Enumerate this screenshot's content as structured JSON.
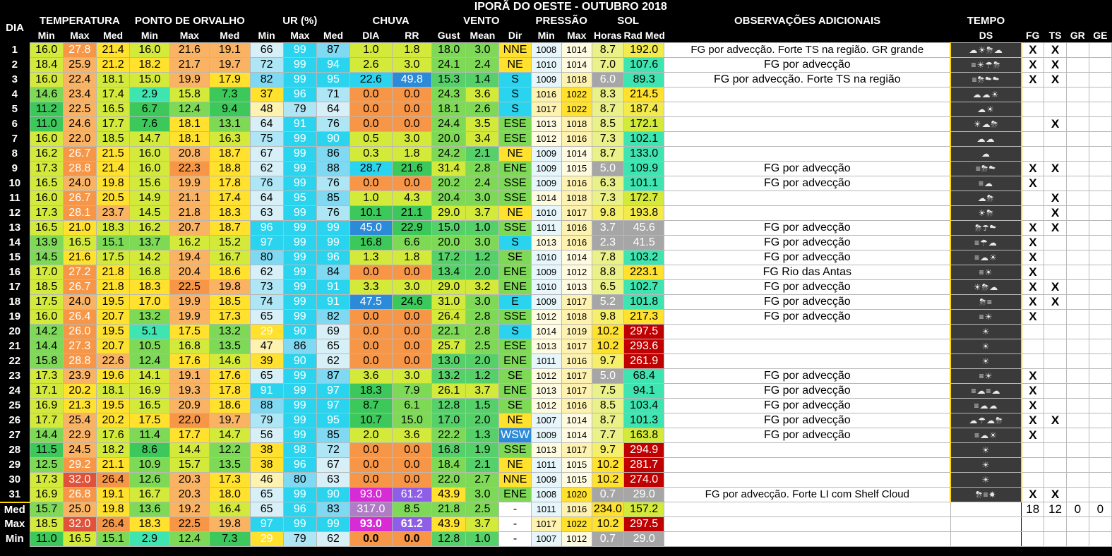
{
  "title": "IPORÃ DO OESTE - OUTUBRO 2018",
  "headers": {
    "dia": "DIA",
    "temperatura": "TEMPERATURA",
    "orvalho": "PONTO DE ORVALHO",
    "ur": "UR (%)",
    "chuva": "CHUVA",
    "vento": "VENTO",
    "pressao": "PRESSÃO",
    "sol": "SOL",
    "obs": "OBSERVAÇÕES ADICIONAIS",
    "tempo": "TEMPO",
    "sub": [
      "Min",
      "Max",
      "Med",
      "Min",
      "Max",
      "Med",
      "Min",
      "Max",
      "Med",
      "DIA",
      "RR",
      "Gust",
      "Mean",
      "Dir",
      "Min",
      "Max",
      "Horas",
      "Rad Med",
      "",
      "DS",
      "FG",
      "TS",
      "GR",
      "GE"
    ]
  },
  "rows": [
    [
      "1",
      "16.0",
      "27.8",
      "21.4",
      "16.0",
      "21.6",
      "19.1",
      "66",
      "99",
      "87",
      "1.0",
      "1.8",
      "18.0",
      "3.0",
      "NNE",
      "1008",
      "1014",
      "8.7",
      "192.0",
      "FG por advecção. Forte TS na região. GR grande",
      "☁☀⛈☁",
      "X",
      "X",
      "",
      ""
    ],
    [
      "2",
      "18.4",
      "25.9",
      "21.2",
      "18.2",
      "21.7",
      "19.7",
      "72",
      "99",
      "94",
      "2.6",
      "3.0",
      "24.1",
      "2.4",
      "NE",
      "1010",
      "1014",
      "7.0",
      "107.6",
      "FG por advecção",
      "≡☀☂⛈",
      "X",
      "X",
      "",
      ""
    ],
    [
      "3",
      "16.0",
      "22.4",
      "18.1",
      "15.0",
      "19.9",
      "17.9",
      "82",
      "99",
      "95",
      "22.6",
      "49.8",
      "15.3",
      "1.4",
      "S",
      "1009",
      "1018",
      "6.0",
      "89.3",
      "FG por advecção. Forte TS na região",
      "≡⛈☁☁",
      "X",
      "X",
      "",
      ""
    ],
    [
      "4",
      "14.6",
      "23.4",
      "17.4",
      "2.9",
      "15.8",
      "7.3",
      "37",
      "96",
      "71",
      "0.0",
      "0.0",
      "24.3",
      "3.6",
      "S",
      "1016",
      "1022",
      "8.3",
      "214.5",
      "",
      "☁☁☀",
      "",
      "",
      "",
      ""
    ],
    [
      "5",
      "11.2",
      "22.5",
      "16.5",
      "6.7",
      "12.4",
      "9.4",
      "48",
      "79",
      "64",
      "0.0",
      "0.0",
      "18.1",
      "2.6",
      "S",
      "1017",
      "1022",
      "8.7",
      "187.4",
      "",
      "☁☀",
      "",
      "",
      "",
      ""
    ],
    [
      "6",
      "11.0",
      "24.6",
      "17.7",
      "7.6",
      "18.1",
      "13.1",
      "64",
      "91",
      "76",
      "0.0",
      "0.0",
      "24.4",
      "3.5",
      "ESE",
      "1013",
      "1018",
      "8.5",
      "172.1",
      "",
      "☀☁⛈",
      "",
      "X",
      "",
      ""
    ],
    [
      "7",
      "16.0",
      "22.0",
      "18.5",
      "14.7",
      "18.1",
      "16.3",
      "75",
      "99",
      "90",
      "0.5",
      "3.0",
      "20.0",
      "3.4",
      "ESE",
      "1012",
      "1016",
      "7.3",
      "102.1",
      "",
      "☁☁",
      "",
      "",
      "",
      ""
    ],
    [
      "8",
      "16.2",
      "26.7",
      "21.5",
      "16.0",
      "20.8",
      "18.7",
      "67",
      "99",
      "86",
      "0.3",
      "1.8",
      "24.2",
      "2.1",
      "NE",
      "1009",
      "1014",
      "8.7",
      "133.0",
      "",
      "☁",
      "",
      "",
      "",
      ""
    ],
    [
      "9",
      "17.3",
      "28.8",
      "21.4",
      "16.0",
      "22.3",
      "18.8",
      "62",
      "99",
      "88",
      "28.7",
      "21.6",
      "31.4",
      "2.8",
      "ENE",
      "1009",
      "1015",
      "5.0",
      "109.9",
      "FG por advecção",
      "≡⛈☁",
      "X",
      "X",
      "",
      ""
    ],
    [
      "10",
      "16.5",
      "24.0",
      "19.8",
      "15.6",
      "19.9",
      "17.8",
      "76",
      "99",
      "76",
      "0.0",
      "0.0",
      "20.2",
      "2.4",
      "SSE",
      "1009",
      "1016",
      "6.3",
      "101.1",
      "FG por advecção",
      "≡☁",
      "X",
      "",
      "",
      ""
    ],
    [
      "11",
      "16.0",
      "26.7",
      "20.5",
      "14.9",
      "21.1",
      "17.4",
      "64",
      "95",
      "85",
      "1.0",
      "4.3",
      "20.4",
      "3.0",
      "SSE",
      "1014",
      "1018",
      "7.3",
      "172.7",
      "",
      "☁⛈",
      "",
      "X",
      "",
      ""
    ],
    [
      "12",
      "17.3",
      "28.1",
      "23.7",
      "14.5",
      "21.8",
      "18.3",
      "63",
      "99",
      "76",
      "10.1",
      "21.1",
      "29.0",
      "3.7",
      "NE",
      "1010",
      "1017",
      "9.8",
      "193.8",
      "",
      "☀⛈",
      "",
      "X",
      "",
      ""
    ],
    [
      "13",
      "16.5",
      "21.0",
      "18.3",
      "16.2",
      "20.7",
      "18.7",
      "96",
      "99",
      "99",
      "45.0",
      "22.9",
      "15.0",
      "1.0",
      "SSE",
      "1011",
      "1016",
      "3.7",
      "45.6",
      "FG por advecção",
      "⛈☂☁",
      "X",
      "X",
      "",
      ""
    ],
    [
      "14",
      "13.9",
      "16.5",
      "15.1",
      "13.7",
      "16.2",
      "15.2",
      "97",
      "99",
      "99",
      "16.8",
      "6.6",
      "20.0",
      "3.0",
      "S",
      "1013",
      "1016",
      "2.3",
      "41.5",
      "FG por advecção",
      "≡☂☁",
      "X",
      "",
      "",
      ""
    ],
    [
      "15",
      "14.5",
      "21.6",
      "17.5",
      "14.2",
      "19.4",
      "16.7",
      "80",
      "99",
      "96",
      "1.3",
      "1.8",
      "17.2",
      "1.2",
      "SE",
      "1010",
      "1014",
      "7.8",
      "103.2",
      "FG por advecção",
      "≡☁☀",
      "X",
      "",
      "",
      ""
    ],
    [
      "16",
      "17.0",
      "27.2",
      "21.8",
      "16.8",
      "20.4",
      "18.6",
      "62",
      "99",
      "84",
      "0.0",
      "0.0",
      "13.4",
      "2.0",
      "ENE",
      "1009",
      "1012",
      "8.8",
      "223.1",
      "FG Rio das Antas",
      "≡☀",
      "X",
      "",
      "",
      ""
    ],
    [
      "17",
      "18.5",
      "26.7",
      "21.8",
      "18.3",
      "22.5",
      "19.8",
      "73",
      "99",
      "91",
      "3.3",
      "3.0",
      "29.0",
      "3.2",
      "ENE",
      "1010",
      "1013",
      "6.5",
      "102.7",
      "FG por advecção",
      "☀⛈☁",
      "X",
      "X",
      "",
      ""
    ],
    [
      "18",
      "17.5",
      "24.0",
      "19.5",
      "17.0",
      "19.9",
      "18.5",
      "74",
      "99",
      "91",
      "47.5",
      "24.6",
      "31.0",
      "3.0",
      "E",
      "1009",
      "1017",
      "5.2",
      "101.8",
      "FG por advecção",
      "⛈≡",
      "X",
      "X",
      "",
      ""
    ],
    [
      "19",
      "16.0",
      "26.4",
      "20.7",
      "13.2",
      "19.9",
      "17.3",
      "65",
      "99",
      "82",
      "0.0",
      "0.0",
      "26.4",
      "2.8",
      "SSE",
      "1012",
      "1018",
      "9.8",
      "217.3",
      "FG por advecção",
      "≡☀",
      "X",
      "",
      "",
      ""
    ],
    [
      "20",
      "14.2",
      "26.0",
      "19.5",
      "5.1",
      "17.5",
      "13.2",
      "29",
      "90",
      "69",
      "0.0",
      "0.0",
      "22.1",
      "2.8",
      "S",
      "1014",
      "1019",
      "10.2",
      "297.5",
      "",
      "☀",
      "",
      "",
      "",
      ""
    ],
    [
      "21",
      "14.4",
      "27.3",
      "20.7",
      "10.5",
      "16.8",
      "13.5",
      "47",
      "86",
      "65",
      "0.0",
      "0.0",
      "25.7",
      "2.5",
      "ESE",
      "1013",
      "1017",
      "10.2",
      "293.6",
      "",
      "☀",
      "",
      "",
      "",
      ""
    ],
    [
      "22",
      "15.8",
      "28.8",
      "22.6",
      "12.4",
      "17.6",
      "14.6",
      "39",
      "90",
      "62",
      "0.0",
      "0.0",
      "13.0",
      "2.0",
      "ENE",
      "1011",
      "1016",
      "9.7",
      "261.9",
      "",
      "☀",
      "",
      "",
      "",
      ""
    ],
    [
      "23",
      "17.3",
      "23.9",
      "19.6",
      "14.1",
      "19.1",
      "17.6",
      "65",
      "99",
      "87",
      "3.6",
      "3.0",
      "13.2",
      "1.2",
      "SE",
      "1012",
      "1017",
      "5.0",
      "68.4",
      "FG por advecção",
      "≡☀",
      "X",
      "",
      "",
      ""
    ],
    [
      "24",
      "17.1",
      "20.2",
      "18.1",
      "16.9",
      "19.3",
      "17.8",
      "91",
      "99",
      "97",
      "18.3",
      "7.9",
      "26.1",
      "3.7",
      "ENE",
      "1013",
      "1017",
      "7.5",
      "94.1",
      "FG por advecção",
      "≡☁≡☁",
      "X",
      "",
      "",
      ""
    ],
    [
      "25",
      "16.9",
      "21.3",
      "19.5",
      "16.5",
      "20.9",
      "18.6",
      "88",
      "99",
      "97",
      "8.7",
      "6.1",
      "12.8",
      "1.5",
      "SE",
      "1012",
      "1016",
      "8.5",
      "103.4",
      "FG por advecção",
      "≡☁☁",
      "X",
      "",
      "",
      ""
    ],
    [
      "26",
      "17.7",
      "25.4",
      "20.2",
      "17.5",
      "22.0",
      "19.7",
      "79",
      "99",
      "95",
      "10.7",
      "15.0",
      "17.0",
      "2.0",
      "NE",
      "1007",
      "1014",
      "8.7",
      "101.3",
      "FG por advecção",
      "☁☂☁⛈",
      "X",
      "X",
      "",
      ""
    ],
    [
      "27",
      "14.4",
      "22.9",
      "17.6",
      "11.4",
      "17.7",
      "14.7",
      "56",
      "99",
      "85",
      "2.0",
      "3.6",
      "22.2",
      "1.3",
      "WSW",
      "1009",
      "1014",
      "7.7",
      "163.8",
      "FG por advecção",
      "≡☁☀",
      "X",
      "",
      "",
      ""
    ],
    [
      "28",
      "11.5",
      "24.5",
      "18.2",
      "8.6",
      "14.4",
      "12.2",
      "38",
      "98",
      "72",
      "0.0",
      "0.0",
      "16.8",
      "1.9",
      "SSE",
      "1013",
      "1017",
      "9.7",
      "294.9",
      "",
      "☀",
      "",
      "",
      "",
      ""
    ],
    [
      "29",
      "12.5",
      "29.2",
      "21.1",
      "10.9",
      "15.7",
      "13.5",
      "38",
      "96",
      "67",
      "0.0",
      "0.0",
      "18.4",
      "2.1",
      "NE",
      "1011",
      "1015",
      "10.2",
      "281.7",
      "",
      "☀",
      "",
      "",
      "",
      ""
    ],
    [
      "30",
      "17.3",
      "32.0",
      "26.4",
      "12.6",
      "20.3",
      "17.3",
      "46",
      "80",
      "63",
      "0.0",
      "0.0",
      "22.0",
      "2.7",
      "NNE",
      "1009",
      "1015",
      "10.2",
      "274.0",
      "",
      "☀",
      "",
      "",
      "",
      ""
    ],
    [
      "31",
      "16.9",
      "26.8",
      "19.1",
      "16.7",
      "20.3",
      "18.0",
      "65",
      "99",
      "90",
      "93.0",
      "61.2",
      "43.9",
      "3.0",
      "ENE",
      "1008",
      "1020",
      "0.7",
      "29.0",
      "FG por advecção. Forte LI com Shelf Cloud",
      "⛈≡☀",
      "X",
      "X",
      "",
      ""
    ]
  ],
  "footer": [
    [
      "Med",
      "15.7",
      "25.0",
      "19.8",
      "13.6",
      "19.2",
      "16.4",
      "65",
      "96",
      "83",
      "317.0",
      "8.5",
      "21.8",
      "2.5",
      "-",
      "1011",
      "1016",
      "234.0",
      "157.2",
      "",
      "",
      "18",
      "12",
      "0",
      "0"
    ],
    [
      "Max",
      "18.5",
      "32.0",
      "26.4",
      "18.3",
      "22.5",
      "19.8",
      "97",
      "99",
      "99",
      "93.0",
      "61.2",
      "43.9",
      "3.7",
      "-",
      "1017",
      "1022",
      "10.2",
      "297.5",
      "",
      "",
      "",
      "",
      "",
      ""
    ],
    [
      "Min",
      "11.0",
      "16.5",
      "15.1",
      "2.9",
      "12.4",
      "7.3",
      "29",
      "79",
      "62",
      "0.0",
      "0.0",
      "12.8",
      "1.0",
      "-",
      "1007",
      "1012",
      "0.7",
      "29.0",
      "",
      "",
      "",
      "",
      "",
      ""
    ]
  ],
  "palette": {
    "orange": "#f79646",
    "light_orange": "#fab363",
    "yellow": "#ffe12e",
    "yellow_green": "#d4ea3a",
    "green": "#7ed957",
    "dark_green": "#3cc85a",
    "teal": "#3fe5b0",
    "cyan": "#2ad4ee",
    "blue": "#2c8bd8",
    "magenta": "#d72bd6",
    "purple": "#8f5ee8",
    "red": "#c00000",
    "grey": "#a6a6a6"
  }
}
